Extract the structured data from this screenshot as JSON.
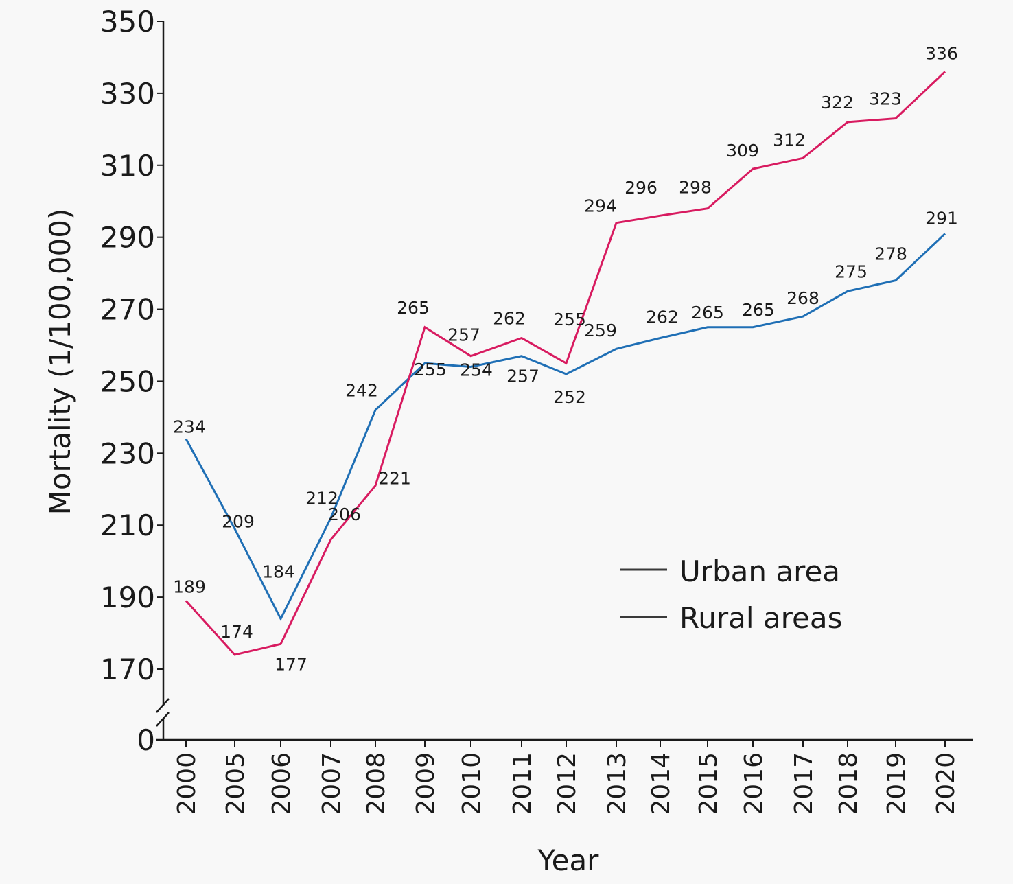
{
  "chart_data": {
    "type": "line",
    "title": "",
    "xlabel": "Year",
    "ylabel": "Mortality (1/100,000)",
    "categories": [
      "2000",
      "2005",
      "2006",
      "2007",
      "2008",
      "2009",
      "2010",
      "2011",
      "2012",
      "2013",
      "2014",
      "2015",
      "2016",
      "2017",
      "2018",
      "2019",
      "2020"
    ],
    "series": [
      {
        "name": "Urban area",
        "color": "#d81b60",
        "values": [
          189,
          174,
          177,
          206,
          221,
          265,
          257,
          262,
          255,
          294,
          296,
          298,
          309,
          312,
          322,
          323,
          336
        ]
      },
      {
        "name": "Rural areas",
        "color": "#1f6fb5",
        "values": [
          234,
          209,
          184,
          212,
          242,
          255,
          254,
          257,
          252,
          259,
          262,
          265,
          265,
          268,
          275,
          278,
          291
        ]
      }
    ],
    "ylim": [
      170,
      350
    ],
    "yticks": [
      "0",
      "170",
      "190",
      "210",
      "230",
      "250",
      "270",
      "290",
      "310",
      "330",
      "350"
    ],
    "axis_break": "between 0 and 170 on y-axis",
    "grid": false,
    "legend": {
      "placement": "center-right",
      "entries": [
        "Urban area",
        "Rural areas"
      ],
      "line_color": "#3a3a3a"
    },
    "axis_color": "#1a1a1a"
  }
}
